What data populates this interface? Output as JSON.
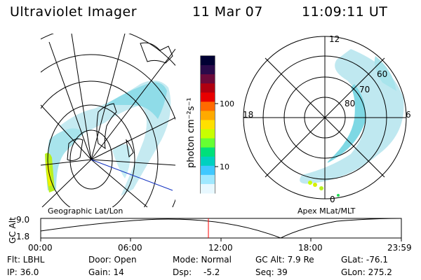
{
  "header": {
    "instrument": "Ultraviolet Imager",
    "date": "11 Mar 07",
    "time": "11:09:11 UT"
  },
  "geo_panel": {
    "label": "Geographic Lat/Lon"
  },
  "colorbar": {
    "unit_label": "photon cm⁻²s⁻¹",
    "ticks": [
      "100",
      "10"
    ],
    "colors": [
      "#000033",
      "#2a0a4a",
      "#6b0a3a",
      "#b00010",
      "#e80000",
      "#ff6a00",
      "#ffaa00",
      "#ffe000",
      "#c8ff00",
      "#66ff33",
      "#00e07a",
      "#00d0c0",
      "#40c8ff",
      "#a0e8ff",
      "#e8f8ff"
    ]
  },
  "polar_panel": {
    "label": "Apex MLat/MLT",
    "mlt_labels": [
      "12",
      "18",
      "6",
      "0"
    ],
    "lat_labels": [
      "60",
      "70",
      "80"
    ]
  },
  "timeline": {
    "y_label": "GC Alt",
    "y_ticks": [
      "9.0",
      "1.8"
    ],
    "x_ticks": [
      "00:00",
      "06:00",
      "12:00",
      "18:00",
      "23:59"
    ],
    "marker_color": "#ff0000"
  },
  "info": {
    "flt": "Flt: LBHL",
    "ip": "IP: 36.0",
    "door": "Door: Open",
    "gain": "Gain: 14",
    "mode": "Mode: Normal",
    "dsp_label": "Dsp:",
    "dsp_value": "-5.2",
    "gc_alt": "GC Alt: 7.9 Re",
    "seq": "Seq: 39",
    "glat": "GLat: -76.1",
    "glon": "GLon: 275.2"
  }
}
